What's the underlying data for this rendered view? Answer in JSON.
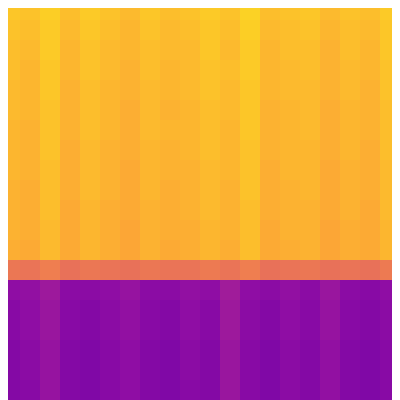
{
  "chart_data": {
    "type": "heatmap",
    "color": "plasma",
    "tick_labels": false,
    "xlim": [
      0,
      20
    ],
    "ylim": [
      0,
      20
    ],
    "color_range": [
      0,
      1
    ],
    "cells": [
      [
        0.88,
        0.87,
        0.9,
        0.86,
        0.89,
        0.87,
        0.85,
        0.88,
        0.86,
        0.87,
        0.89,
        0.87,
        0.91,
        0.86,
        0.87,
        0.88,
        0.85,
        0.87,
        0.86,
        0.89
      ],
      [
        0.87,
        0.86,
        0.89,
        0.85,
        0.88,
        0.86,
        0.84,
        0.87,
        0.85,
        0.86,
        0.88,
        0.86,
        0.9,
        0.85,
        0.86,
        0.87,
        0.84,
        0.86,
        0.85,
        0.88
      ],
      [
        0.86,
        0.85,
        0.89,
        0.84,
        0.87,
        0.85,
        0.84,
        0.86,
        0.85,
        0.85,
        0.88,
        0.85,
        0.89,
        0.84,
        0.86,
        0.86,
        0.83,
        0.86,
        0.84,
        0.88
      ],
      [
        0.86,
        0.84,
        0.88,
        0.84,
        0.87,
        0.85,
        0.83,
        0.86,
        0.84,
        0.85,
        0.87,
        0.86,
        0.89,
        0.84,
        0.85,
        0.86,
        0.83,
        0.85,
        0.84,
        0.87
      ],
      [
        0.85,
        0.84,
        0.88,
        0.83,
        0.86,
        0.84,
        0.83,
        0.85,
        0.84,
        0.85,
        0.87,
        0.85,
        0.88,
        0.84,
        0.85,
        0.85,
        0.83,
        0.85,
        0.83,
        0.87
      ],
      [
        0.85,
        0.84,
        0.87,
        0.83,
        0.86,
        0.84,
        0.82,
        0.85,
        0.83,
        0.84,
        0.86,
        0.85,
        0.88,
        0.83,
        0.84,
        0.85,
        0.82,
        0.84,
        0.83,
        0.86
      ],
      [
        0.84,
        0.83,
        0.87,
        0.83,
        0.86,
        0.84,
        0.82,
        0.85,
        0.84,
        0.84,
        0.86,
        0.84,
        0.88,
        0.83,
        0.84,
        0.85,
        0.82,
        0.84,
        0.83,
        0.86
      ],
      [
        0.84,
        0.83,
        0.87,
        0.82,
        0.85,
        0.83,
        0.82,
        0.84,
        0.83,
        0.84,
        0.86,
        0.84,
        0.87,
        0.83,
        0.84,
        0.84,
        0.82,
        0.84,
        0.82,
        0.86
      ],
      [
        0.84,
        0.83,
        0.86,
        0.82,
        0.85,
        0.83,
        0.81,
        0.84,
        0.83,
        0.83,
        0.85,
        0.84,
        0.87,
        0.82,
        0.84,
        0.84,
        0.81,
        0.83,
        0.82,
        0.85
      ],
      [
        0.83,
        0.82,
        0.86,
        0.82,
        0.85,
        0.83,
        0.81,
        0.84,
        0.82,
        0.83,
        0.85,
        0.83,
        0.87,
        0.82,
        0.83,
        0.84,
        0.81,
        0.83,
        0.82,
        0.85
      ],
      [
        0.83,
        0.82,
        0.86,
        0.81,
        0.84,
        0.82,
        0.81,
        0.83,
        0.82,
        0.83,
        0.85,
        0.83,
        0.86,
        0.82,
        0.83,
        0.83,
        0.81,
        0.83,
        0.81,
        0.85
      ],
      [
        0.83,
        0.82,
        0.85,
        0.81,
        0.84,
        0.82,
        0.8,
        0.83,
        0.82,
        0.82,
        0.84,
        0.83,
        0.86,
        0.81,
        0.83,
        0.83,
        0.8,
        0.82,
        0.81,
        0.84
      ],
      [
        0.82,
        0.81,
        0.85,
        0.81,
        0.84,
        0.82,
        0.8,
        0.83,
        0.81,
        0.82,
        0.84,
        0.82,
        0.86,
        0.81,
        0.82,
        0.83,
        0.8,
        0.82,
        0.81,
        0.84
      ],
      [
        0.66,
        0.65,
        0.68,
        0.64,
        0.66,
        0.65,
        0.64,
        0.66,
        0.65,
        0.65,
        0.67,
        0.65,
        0.68,
        0.64,
        0.65,
        0.66,
        0.64,
        0.65,
        0.64,
        0.67
      ],
      [
        0.3,
        0.31,
        0.34,
        0.29,
        0.29,
        0.3,
        0.32,
        0.29,
        0.29,
        0.31,
        0.3,
        0.35,
        0.3,
        0.29,
        0.31,
        0.29,
        0.33,
        0.29,
        0.28,
        0.3
      ],
      [
        0.28,
        0.3,
        0.33,
        0.28,
        0.27,
        0.29,
        0.31,
        0.28,
        0.27,
        0.3,
        0.28,
        0.34,
        0.29,
        0.27,
        0.3,
        0.28,
        0.32,
        0.28,
        0.27,
        0.29
      ],
      [
        0.28,
        0.3,
        0.33,
        0.28,
        0.27,
        0.29,
        0.31,
        0.28,
        0.27,
        0.3,
        0.28,
        0.34,
        0.29,
        0.27,
        0.3,
        0.28,
        0.32,
        0.28,
        0.27,
        0.29
      ],
      [
        0.27,
        0.29,
        0.32,
        0.27,
        0.26,
        0.28,
        0.3,
        0.27,
        0.26,
        0.29,
        0.27,
        0.33,
        0.28,
        0.26,
        0.29,
        0.27,
        0.31,
        0.27,
        0.26,
        0.28
      ],
      [
        0.27,
        0.29,
        0.32,
        0.27,
        0.26,
        0.28,
        0.3,
        0.27,
        0.26,
        0.29,
        0.27,
        0.33,
        0.28,
        0.26,
        0.29,
        0.27,
        0.31,
        0.27,
        0.26,
        0.28
      ],
      [
        0.27,
        0.28,
        0.32,
        0.27,
        0.26,
        0.28,
        0.3,
        0.27,
        0.26,
        0.28,
        0.27,
        0.33,
        0.28,
        0.26,
        0.29,
        0.27,
        0.31,
        0.27,
        0.26,
        0.28
      ]
    ]
  }
}
